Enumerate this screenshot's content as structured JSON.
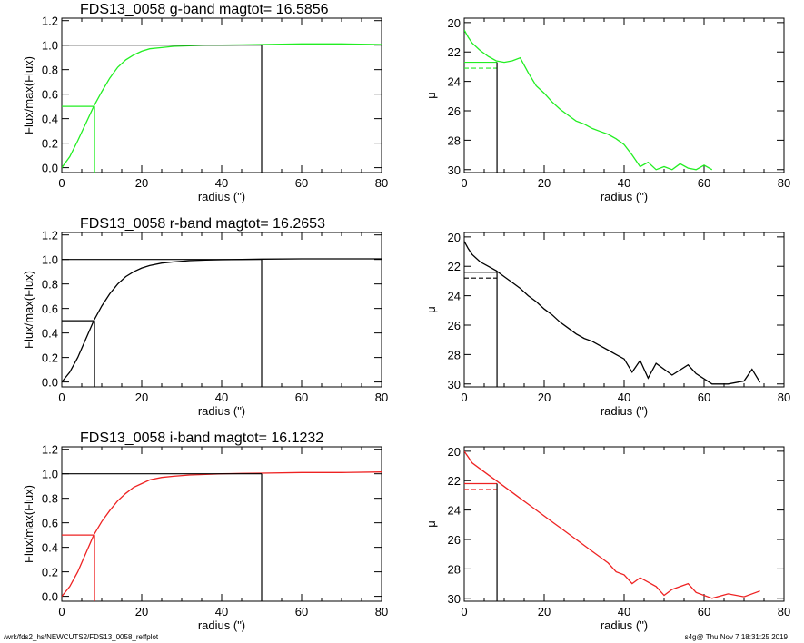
{
  "footer": {
    "path": "/wrk/fds2_hs/NEWCUTS2/FDS13_0058_reffplot",
    "stamp": "s4g@  Thu Nov  7 18:31:25 2019"
  },
  "chart_data": [
    {
      "type": "line",
      "title": "FDS13_0058 g-band  magtot=      16.5856",
      "xlabel": "radius (\")",
      "ylabel": "Flux/max(Flux)",
      "xlim": [
        0,
        80
      ],
      "ylim": [
        -0.04,
        1.22
      ],
      "xticks": [
        "0",
        "20",
        "40",
        "60",
        "80"
      ],
      "yticks": [
        "0.0",
        "0.2",
        "0.4",
        "0.6",
        "0.8",
        "1.0",
        "1.2"
      ],
      "color": "#22ee22",
      "series": [
        {
          "x": [
            0,
            2,
            4,
            6,
            8,
            10,
            12,
            14,
            16,
            18,
            20,
            22,
            25,
            28,
            32,
            36,
            40,
            45,
            50,
            60,
            70,
            80
          ],
          "y": [
            0.0,
            0.09,
            0.22,
            0.36,
            0.5,
            0.62,
            0.73,
            0.82,
            0.88,
            0.92,
            0.95,
            0.97,
            0.98,
            0.99,
            0.995,
            1.0,
            1.0,
            1.002,
            1.005,
            1.01,
            1.01,
            1.005
          ]
        }
      ],
      "reference_lines": {
        "total_flux_level": 1.0,
        "half_flux": 0.5,
        "r_eff": 8.2,
        "r_max": 50
      }
    },
    {
      "type": "line",
      "title": "",
      "xlabel": "radius (\")",
      "ylabel": "μ",
      "xlim": [
        0,
        80
      ],
      "ylim": [
        30.2,
        19.7
      ],
      "xticks": [
        "0",
        "20",
        "40",
        "60",
        "80"
      ],
      "yticks": [
        "20",
        "22",
        "24",
        "26",
        "28",
        "30"
      ],
      "color": "#22ee22",
      "series": [
        {
          "x": [
            0,
            1,
            2,
            4,
            6,
            8,
            10,
            12,
            14,
            16,
            18,
            20,
            22,
            24,
            26,
            28,
            30,
            32,
            34,
            36,
            38,
            40,
            42,
            44,
            46,
            48,
            50,
            52,
            54,
            56,
            58,
            60,
            62
          ],
          "y": [
            20.5,
            21.0,
            21.4,
            21.9,
            22.3,
            22.6,
            22.7,
            22.6,
            22.4,
            23.4,
            24.3,
            24.8,
            25.4,
            25.9,
            26.3,
            26.7,
            26.9,
            27.2,
            27.4,
            27.6,
            27.9,
            28.3,
            29.0,
            29.8,
            29.5,
            30.0,
            29.8,
            30.0,
            29.6,
            29.9,
            30.0,
            29.7,
            30.0
          ]
        }
      ],
      "reference_lines": {
        "mu_eff": 22.7,
        "mu_eff_mean": 23.1,
        "r_eff": 8.2
      }
    },
    {
      "type": "line",
      "title": "FDS13_0058 r-band  magtot=      16.2653",
      "xlabel": "radius (\")",
      "ylabel": "Flux/max(Flux)",
      "xlim": [
        0,
        80
      ],
      "ylim": [
        -0.04,
        1.22
      ],
      "xticks": [
        "0",
        "20",
        "40",
        "60",
        "80"
      ],
      "yticks": [
        "0.0",
        "0.2",
        "0.4",
        "0.6",
        "0.8",
        "1.0",
        "1.2"
      ],
      "color": "#000000",
      "series": [
        {
          "x": [
            0,
            2,
            4,
            6,
            8,
            10,
            12,
            14,
            16,
            18,
            20,
            22,
            25,
            28,
            32,
            36,
            40,
            45,
            50,
            60,
            70,
            80
          ],
          "y": [
            0.0,
            0.08,
            0.2,
            0.35,
            0.5,
            0.62,
            0.72,
            0.8,
            0.86,
            0.9,
            0.93,
            0.95,
            0.97,
            0.98,
            0.99,
            0.995,
            0.998,
            1.0,
            1.003,
            1.005,
            1.005,
            1.005
          ]
        }
      ],
      "reference_lines": {
        "total_flux_level": 1.0,
        "half_flux": 0.5,
        "r_eff": 8.2,
        "r_max": 50
      }
    },
    {
      "type": "line",
      "title": "",
      "xlabel": "radius (\")",
      "ylabel": "μ",
      "xlim": [
        0,
        80
      ],
      "ylim": [
        30.2,
        19.7
      ],
      "xticks": [
        "0",
        "20",
        "40",
        "60",
        "80"
      ],
      "yticks": [
        "20",
        "22",
        "24",
        "26",
        "28",
        "30"
      ],
      "color": "#000000",
      "series": [
        {
          "x": [
            0,
            1,
            2,
            4,
            6,
            8,
            10,
            12,
            14,
            16,
            18,
            20,
            22,
            24,
            26,
            28,
            30,
            32,
            34,
            36,
            38,
            40,
            42,
            44,
            46,
            48,
            52,
            56,
            58,
            62,
            66,
            70,
            72,
            74
          ],
          "y": [
            20.3,
            20.8,
            21.2,
            21.7,
            22.0,
            22.3,
            22.7,
            23.1,
            23.5,
            24.0,
            24.4,
            24.9,
            25.3,
            25.8,
            26.2,
            26.6,
            26.9,
            27.1,
            27.4,
            27.7,
            28.0,
            28.3,
            29.2,
            28.4,
            29.6,
            28.6,
            29.4,
            28.7,
            29.3,
            30.0,
            30.0,
            29.8,
            29.0,
            29.9
          ]
        }
      ],
      "reference_lines": {
        "mu_eff": 22.4,
        "mu_eff_mean": 22.8,
        "r_eff": 8.2
      }
    },
    {
      "type": "line",
      "title": "FDS13_0058 i-band  magtot=      16.1232",
      "xlabel": "radius (\")",
      "ylabel": "Flux/max(Flux)",
      "xlim": [
        0,
        80
      ],
      "ylim": [
        -0.04,
        1.22
      ],
      "xticks": [
        "0",
        "20",
        "40",
        "60",
        "80"
      ],
      "yticks": [
        "0.0",
        "0.2",
        "0.4",
        "0.6",
        "0.8",
        "1.0",
        "1.2"
      ],
      "color": "#ee2222",
      "series": [
        {
          "x": [
            0,
            2,
            4,
            6,
            8,
            10,
            12,
            14,
            16,
            18,
            20,
            22,
            25,
            28,
            32,
            36,
            40,
            45,
            50,
            60,
            70,
            80
          ],
          "y": [
            0.0,
            0.08,
            0.2,
            0.35,
            0.5,
            0.61,
            0.7,
            0.78,
            0.84,
            0.89,
            0.92,
            0.95,
            0.97,
            0.98,
            0.99,
            0.995,
            1.0,
            1.003,
            1.005,
            1.01,
            1.01,
            1.015
          ]
        }
      ],
      "reference_lines": {
        "total_flux_level": 1.0,
        "half_flux": 0.5,
        "r_eff": 8.2,
        "r_max": 50
      }
    },
    {
      "type": "line",
      "title": "",
      "xlabel": "radius (\")",
      "ylabel": "μ",
      "xlim": [
        0,
        80
      ],
      "ylim": [
        30.2,
        19.7
      ],
      "xticks": [
        "0",
        "20",
        "40",
        "60",
        "80"
      ],
      "yticks": [
        "20",
        "22",
        "24",
        "26",
        "28",
        "30"
      ],
      "color": "#ee2222",
      "series": [
        {
          "x": [
            0,
            1,
            2,
            4,
            6,
            8,
            10,
            12,
            14,
            16,
            18,
            20,
            22,
            24,
            26,
            28,
            30,
            32,
            34,
            36,
            38,
            40,
            42,
            44,
            48,
            50,
            52,
            56,
            58,
            62,
            66,
            70,
            74
          ],
          "y": [
            20.0,
            20.4,
            20.8,
            21.2,
            21.6,
            22.0,
            22.4,
            22.8,
            23.2,
            23.6,
            24.0,
            24.4,
            24.8,
            25.2,
            25.6,
            26.0,
            26.4,
            26.8,
            27.2,
            27.6,
            28.2,
            28.4,
            29.0,
            28.6,
            29.2,
            29.8,
            29.4,
            29.0,
            29.6,
            30.0,
            29.7,
            29.9,
            29.5
          ]
        }
      ],
      "reference_lines": {
        "mu_eff": 22.2,
        "mu_eff_mean": 22.6,
        "r_eff": 8.2
      }
    }
  ]
}
